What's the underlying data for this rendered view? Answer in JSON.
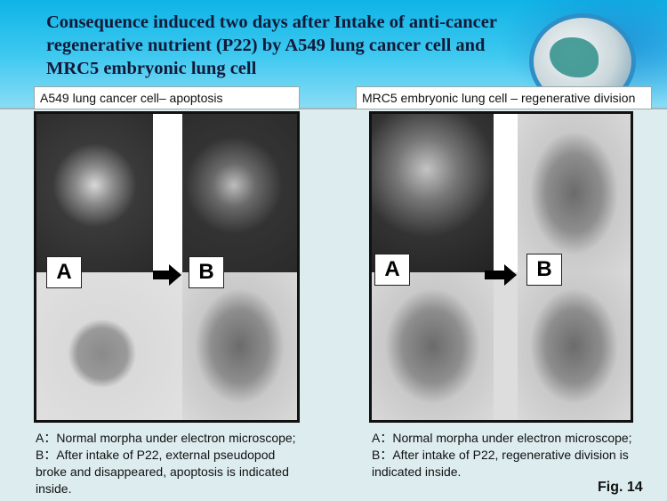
{
  "header": {
    "title": "Consequence induced two days after Intake of anti-cancer regenerative nutrient (P22) by A549 lung cancer cell and MRC5 embryonic lung cell"
  },
  "left": {
    "caption": "A549 lung cancer cell– apoptosis",
    "label_a": "A",
    "label_b": "B",
    "desc": [
      "A：Normal morpha under electron microscope;",
      "B：After intake of P22,  external pseudopod broke and disappeared,  apoptosis is indicated inside."
    ]
  },
  "right": {
    "caption": "MRC5 embryonic lung cell – regenerative division",
    "label_a": "A",
    "label_b": "B",
    "desc": [
      "A：Normal morpha under electron microscope;",
      "B：After intake of P22,  regenerative division is indicated inside."
    ]
  },
  "figure_label": "Fig. 14"
}
